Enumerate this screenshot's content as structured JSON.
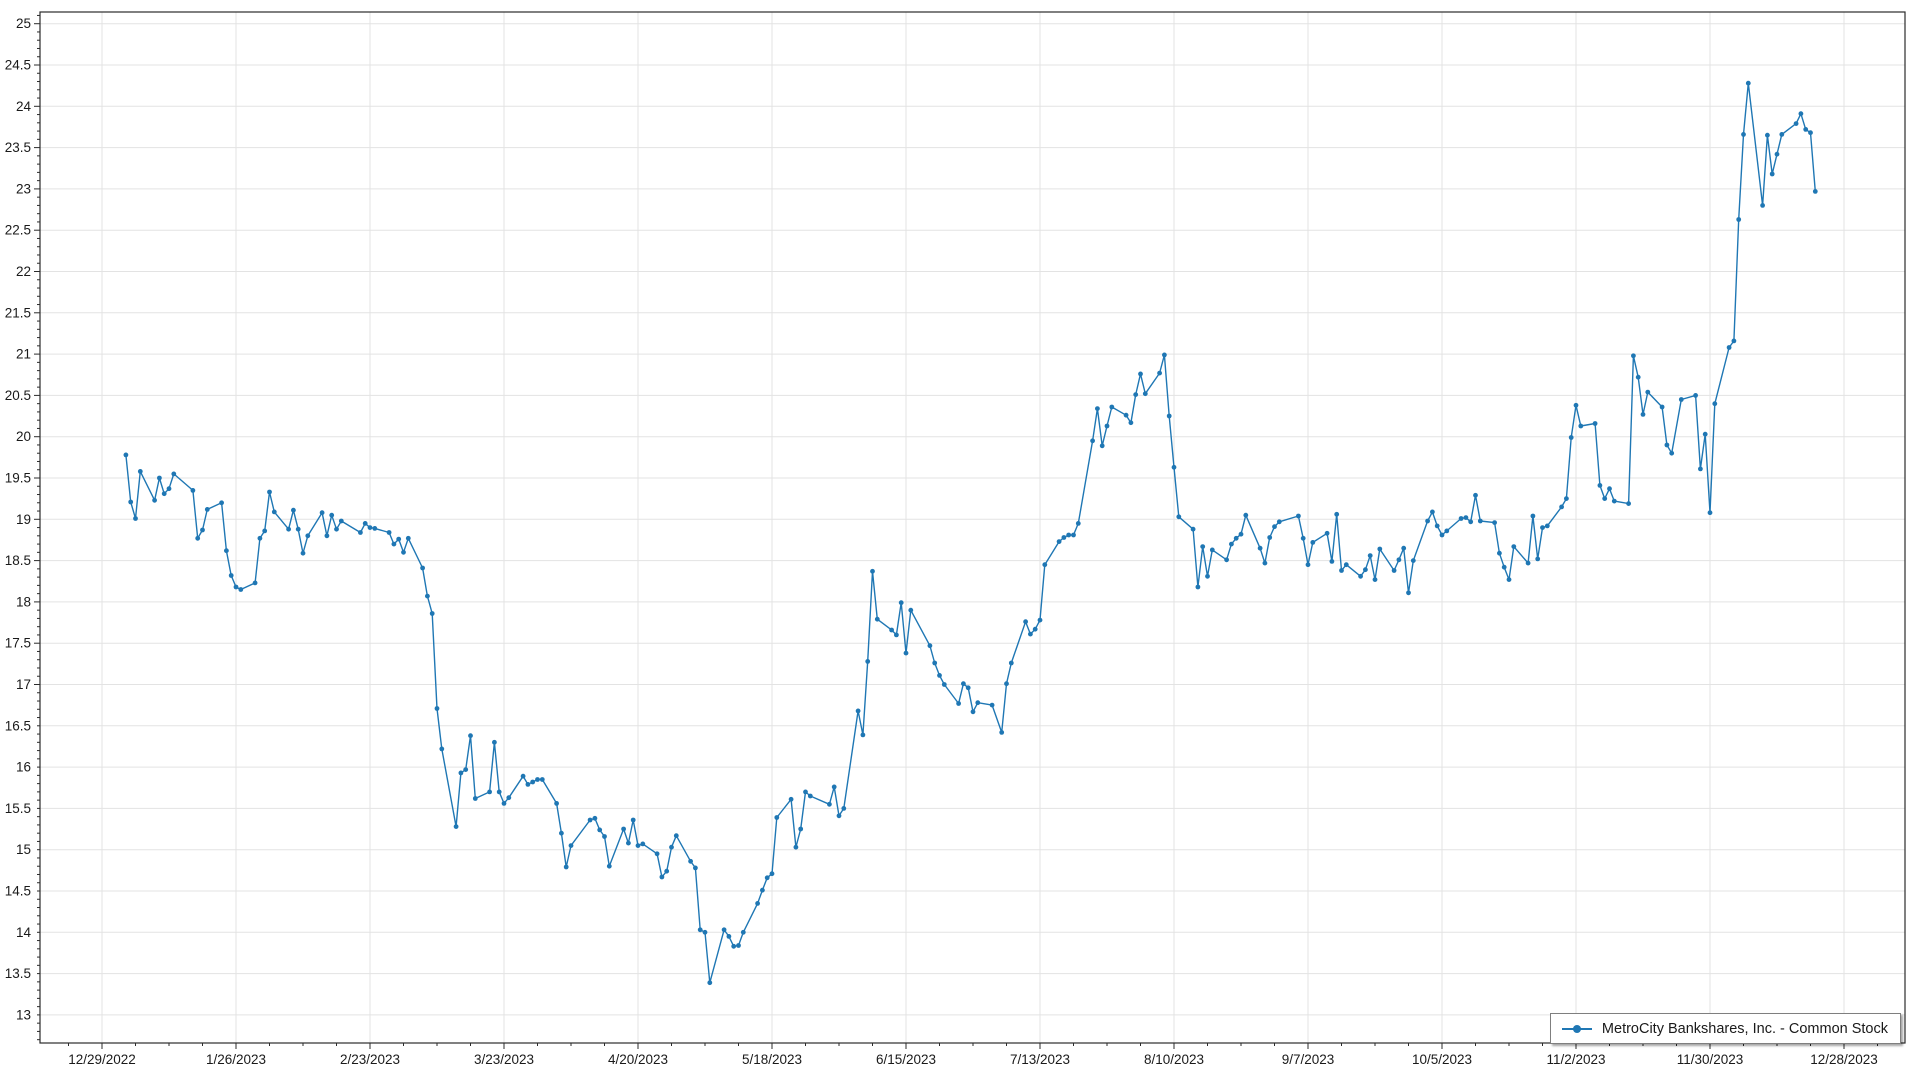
{
  "chart_data": {
    "type": "line",
    "title": "",
    "legend": {
      "position": "bottom-right",
      "label": "MetroCity Bankshares, Inc. - Common Stock"
    },
    "grid": true,
    "colors": {
      "series": "#1f77b4",
      "grid": "#e3e3e3",
      "axis": "#2b2b2b",
      "label": "#1a1a1a",
      "background": "#ffffff",
      "legend_border": "#7f7f7f"
    },
    "x_axis": {
      "start_date": "2022-12-29",
      "tick_interval_days": 28,
      "minor_tick_interval_days": 7,
      "tick_labels": [
        "12/29/2022",
        "1/26/2023",
        "2/23/2023",
        "3/23/2023",
        "4/20/2023",
        "5/18/2023",
        "6/15/2023",
        "7/13/2023",
        "8/10/2023",
        "9/7/2023",
        "10/5/2023",
        "11/2/2023",
        "11/30/2023",
        "12/28/2023"
      ]
    },
    "y_axis": {
      "min": 13,
      "max": 25,
      "tick_step": 0.5,
      "minor_tick_step": 0.1,
      "tick_labels": [
        "25",
        "24.5",
        "24",
        "23.5",
        "23",
        "22.5",
        "22",
        "21.5",
        "21",
        "20.5",
        "20",
        "19.5",
        "19",
        "18.5",
        "18",
        "17.5",
        "17",
        "16.5",
        "16",
        "15.5",
        "15",
        "14.5",
        "14",
        "13.5",
        "13"
      ]
    },
    "series": [
      {
        "name": "MetroCity Bankshares, Inc. - Common Stock",
        "color": "#1f77b4",
        "marker": "circle",
        "points": [
          [
            "2023-01-03",
            19.78
          ],
          [
            "2023-01-04",
            19.21
          ],
          [
            "2023-01-05",
            19.01
          ],
          [
            "2023-01-06",
            19.58
          ],
          [
            "2023-01-09",
            19.23
          ],
          [
            "2023-01-10",
            19.5
          ],
          [
            "2023-01-11",
            19.31
          ],
          [
            "2023-01-12",
            19.37
          ],
          [
            "2023-01-13",
            19.55
          ],
          [
            "2023-01-17",
            19.35
          ],
          [
            "2023-01-18",
            18.77
          ],
          [
            "2023-01-19",
            18.87
          ],
          [
            "2023-01-20",
            19.12
          ],
          [
            "2023-01-23",
            19.2
          ],
          [
            "2023-01-24",
            18.62
          ],
          [
            "2023-01-25",
            18.32
          ],
          [
            "2023-01-26",
            18.18
          ],
          [
            "2023-01-27",
            18.15
          ],
          [
            "2023-01-30",
            18.23
          ],
          [
            "2023-01-31",
            18.77
          ],
          [
            "2023-02-01",
            18.86
          ],
          [
            "2023-02-02",
            19.33
          ],
          [
            "2023-02-03",
            19.09
          ],
          [
            "2023-02-06",
            18.88
          ],
          [
            "2023-02-07",
            19.11
          ],
          [
            "2023-02-08",
            18.88
          ],
          [
            "2023-02-09",
            18.59
          ],
          [
            "2023-02-10",
            18.8
          ],
          [
            "2023-02-13",
            19.08
          ],
          [
            "2023-02-14",
            18.8
          ],
          [
            "2023-02-15",
            19.05
          ],
          [
            "2023-02-16",
            18.88
          ],
          [
            "2023-02-17",
            18.98
          ],
          [
            "2023-02-21",
            18.84
          ],
          [
            "2023-02-22",
            18.95
          ],
          [
            "2023-02-23",
            18.9
          ],
          [
            "2023-02-24",
            18.89
          ],
          [
            "2023-02-27",
            18.84
          ],
          [
            "2023-02-28",
            18.7
          ],
          [
            "2023-03-01",
            18.76
          ],
          [
            "2023-03-02",
            18.6
          ],
          [
            "2023-03-03",
            18.77
          ],
          [
            "2023-03-06",
            18.41
          ],
          [
            "2023-03-07",
            18.07
          ],
          [
            "2023-03-08",
            17.86
          ],
          [
            "2023-03-09",
            16.71
          ],
          [
            "2023-03-10",
            16.22
          ],
          [
            "2023-03-13",
            15.28
          ],
          [
            "2023-03-14",
            15.93
          ],
          [
            "2023-03-15",
            15.97
          ],
          [
            "2023-03-16",
            16.38
          ],
          [
            "2023-03-17",
            15.62
          ],
          [
            "2023-03-20",
            15.7
          ],
          [
            "2023-03-21",
            16.3
          ],
          [
            "2023-03-22",
            15.7
          ],
          [
            "2023-03-23",
            15.56
          ],
          [
            "2023-03-24",
            15.63
          ],
          [
            "2023-03-27",
            15.89
          ],
          [
            "2023-03-28",
            15.79
          ],
          [
            "2023-03-29",
            15.82
          ],
          [
            "2023-03-30",
            15.85
          ],
          [
            "2023-03-31",
            15.85
          ],
          [
            "2023-04-03",
            15.56
          ],
          [
            "2023-04-04",
            15.2
          ],
          [
            "2023-04-05",
            14.79
          ],
          [
            "2023-04-06",
            15.05
          ],
          [
            "2023-04-10",
            15.36
          ],
          [
            "2023-04-11",
            15.38
          ],
          [
            "2023-04-12",
            15.24
          ],
          [
            "2023-04-13",
            15.16
          ],
          [
            "2023-04-14",
            14.8
          ],
          [
            "2023-04-17",
            15.25
          ],
          [
            "2023-04-18",
            15.08
          ],
          [
            "2023-04-19",
            15.36
          ],
          [
            "2023-04-20",
            15.05
          ],
          [
            "2023-04-21",
            15.07
          ],
          [
            "2023-04-24",
            14.95
          ],
          [
            "2023-04-25",
            14.67
          ],
          [
            "2023-04-26",
            14.74
          ],
          [
            "2023-04-27",
            15.03
          ],
          [
            "2023-04-28",
            15.17
          ],
          [
            "2023-05-01",
            14.86
          ],
          [
            "2023-05-02",
            14.78
          ],
          [
            "2023-05-03",
            14.03
          ],
          [
            "2023-05-04",
            14.0
          ],
          [
            "2023-05-05",
            13.39
          ],
          [
            "2023-05-08",
            14.03
          ],
          [
            "2023-05-09",
            13.95
          ],
          [
            "2023-05-10",
            13.83
          ],
          [
            "2023-05-11",
            13.84
          ],
          [
            "2023-05-12",
            14.0
          ],
          [
            "2023-05-15",
            14.35
          ],
          [
            "2023-05-16",
            14.51
          ],
          [
            "2023-05-17",
            14.66
          ],
          [
            "2023-05-18",
            14.71
          ],
          [
            "2023-05-19",
            15.39
          ],
          [
            "2023-05-22",
            15.61
          ],
          [
            "2023-05-23",
            15.03
          ],
          [
            "2023-05-24",
            15.25
          ],
          [
            "2023-05-25",
            15.7
          ],
          [
            "2023-05-26",
            15.65
          ],
          [
            "2023-05-30",
            15.55
          ],
          [
            "2023-05-31",
            15.76
          ],
          [
            "2023-06-01",
            15.41
          ],
          [
            "2023-06-02",
            15.5
          ],
          [
            "2023-06-05",
            16.68
          ],
          [
            "2023-06-06",
            16.39
          ],
          [
            "2023-06-07",
            17.28
          ],
          [
            "2023-06-08",
            18.37
          ],
          [
            "2023-06-09",
            17.79
          ],
          [
            "2023-06-12",
            17.66
          ],
          [
            "2023-06-13",
            17.6
          ],
          [
            "2023-06-14",
            17.99
          ],
          [
            "2023-06-15",
            17.38
          ],
          [
            "2023-06-16",
            17.9
          ],
          [
            "2023-06-20",
            17.47
          ],
          [
            "2023-06-21",
            17.26
          ],
          [
            "2023-06-22",
            17.11
          ],
          [
            "2023-06-23",
            17.0
          ],
          [
            "2023-06-26",
            16.77
          ],
          [
            "2023-06-27",
            17.01
          ],
          [
            "2023-06-28",
            16.96
          ],
          [
            "2023-06-29",
            16.67
          ],
          [
            "2023-06-30",
            16.78
          ],
          [
            "2023-07-03",
            16.75
          ],
          [
            "2023-07-05",
            16.42
          ],
          [
            "2023-07-06",
            17.01
          ],
          [
            "2023-07-07",
            17.26
          ],
          [
            "2023-07-10",
            17.76
          ],
          [
            "2023-07-11",
            17.61
          ],
          [
            "2023-07-12",
            17.67
          ],
          [
            "2023-07-13",
            17.78
          ],
          [
            "2023-07-14",
            18.45
          ],
          [
            "2023-07-17",
            18.73
          ],
          [
            "2023-07-18",
            18.78
          ],
          [
            "2023-07-19",
            18.81
          ],
          [
            "2023-07-20",
            18.81
          ],
          [
            "2023-07-21",
            18.95
          ],
          [
            "2023-07-24",
            19.95
          ],
          [
            "2023-07-25",
            20.34
          ],
          [
            "2023-07-26",
            19.89
          ],
          [
            "2023-07-27",
            20.13
          ],
          [
            "2023-07-28",
            20.36
          ],
          [
            "2023-07-31",
            20.26
          ],
          [
            "2023-08-01",
            20.17
          ],
          [
            "2023-08-02",
            20.51
          ],
          [
            "2023-08-03",
            20.76
          ],
          [
            "2023-08-04",
            20.52
          ],
          [
            "2023-08-07",
            20.77
          ],
          [
            "2023-08-08",
            20.99
          ],
          [
            "2023-08-09",
            20.25
          ],
          [
            "2023-08-10",
            19.63
          ],
          [
            "2023-08-11",
            19.03
          ],
          [
            "2023-08-14",
            18.88
          ],
          [
            "2023-08-15",
            18.18
          ],
          [
            "2023-08-16",
            18.67
          ],
          [
            "2023-08-17",
            18.31
          ],
          [
            "2023-08-18",
            18.63
          ],
          [
            "2023-08-21",
            18.51
          ],
          [
            "2023-08-22",
            18.7
          ],
          [
            "2023-08-23",
            18.77
          ],
          [
            "2023-08-24",
            18.82
          ],
          [
            "2023-08-25",
            19.05
          ],
          [
            "2023-08-28",
            18.65
          ],
          [
            "2023-08-29",
            18.47
          ],
          [
            "2023-08-30",
            18.78
          ],
          [
            "2023-08-31",
            18.91
          ],
          [
            "2023-09-01",
            18.97
          ],
          [
            "2023-09-05",
            19.04
          ],
          [
            "2023-09-06",
            18.77
          ],
          [
            "2023-09-07",
            18.45
          ],
          [
            "2023-09-08",
            18.72
          ],
          [
            "2023-09-11",
            18.83
          ],
          [
            "2023-09-12",
            18.49
          ],
          [
            "2023-09-13",
            19.06
          ],
          [
            "2023-09-14",
            18.38
          ],
          [
            "2023-09-15",
            18.45
          ],
          [
            "2023-09-18",
            18.31
          ],
          [
            "2023-09-19",
            18.39
          ],
          [
            "2023-09-20",
            18.56
          ],
          [
            "2023-09-21",
            18.27
          ],
          [
            "2023-09-22",
            18.64
          ],
          [
            "2023-09-25",
            18.38
          ],
          [
            "2023-09-26",
            18.51
          ],
          [
            "2023-09-27",
            18.65
          ],
          [
            "2023-09-28",
            18.11
          ],
          [
            "2023-09-29",
            18.5
          ],
          [
            "2023-10-02",
            18.98
          ],
          [
            "2023-10-03",
            19.09
          ],
          [
            "2023-10-04",
            18.92
          ],
          [
            "2023-10-05",
            18.81
          ],
          [
            "2023-10-06",
            18.86
          ],
          [
            "2023-10-09",
            19.01
          ],
          [
            "2023-10-10",
            19.02
          ],
          [
            "2023-10-11",
            18.97
          ],
          [
            "2023-10-12",
            19.29
          ],
          [
            "2023-10-13",
            18.98
          ],
          [
            "2023-10-16",
            18.96
          ],
          [
            "2023-10-17",
            18.59
          ],
          [
            "2023-10-18",
            18.42
          ],
          [
            "2023-10-19",
            18.27
          ],
          [
            "2023-10-20",
            18.67
          ],
          [
            "2023-10-23",
            18.47
          ],
          [
            "2023-10-24",
            19.04
          ],
          [
            "2023-10-25",
            18.52
          ],
          [
            "2023-10-26",
            18.9
          ],
          [
            "2023-10-27",
            18.92
          ],
          [
            "2023-10-30",
            19.15
          ],
          [
            "2023-10-31",
            19.25
          ],
          [
            "2023-11-01",
            19.99
          ],
          [
            "2023-11-02",
            20.38
          ],
          [
            "2023-11-03",
            20.13
          ],
          [
            "2023-11-06",
            20.16
          ],
          [
            "2023-11-07",
            19.41
          ],
          [
            "2023-11-08",
            19.25
          ],
          [
            "2023-11-09",
            19.37
          ],
          [
            "2023-11-10",
            19.22
          ],
          [
            "2023-11-13",
            19.19
          ],
          [
            "2023-11-14",
            20.98
          ],
          [
            "2023-11-15",
            20.72
          ],
          [
            "2023-11-16",
            20.27
          ],
          [
            "2023-11-17",
            20.54
          ],
          [
            "2023-11-20",
            20.36
          ],
          [
            "2023-11-21",
            19.9
          ],
          [
            "2023-11-22",
            19.8
          ],
          [
            "2023-11-24",
            20.45
          ],
          [
            "2023-11-27",
            20.5
          ],
          [
            "2023-11-28",
            19.61
          ],
          [
            "2023-11-29",
            20.03
          ],
          [
            "2023-11-30",
            19.08
          ],
          [
            "2023-12-01",
            20.4
          ],
          [
            "2023-12-04",
            21.08
          ],
          [
            "2023-12-05",
            21.16
          ],
          [
            "2023-12-06",
            22.63
          ],
          [
            "2023-12-07",
            23.66
          ],
          [
            "2023-12-08",
            24.28
          ],
          [
            "2023-12-11",
            22.8
          ],
          [
            "2023-12-12",
            23.65
          ],
          [
            "2023-12-13",
            23.18
          ],
          [
            "2023-12-14",
            23.42
          ],
          [
            "2023-12-15",
            23.66
          ],
          [
            "2023-12-18",
            23.79
          ],
          [
            "2023-12-19",
            23.91
          ],
          [
            "2023-12-20",
            23.72
          ],
          [
            "2023-12-21",
            23.68
          ],
          [
            "2023-12-22",
            22.97
          ]
        ]
      }
    ]
  }
}
